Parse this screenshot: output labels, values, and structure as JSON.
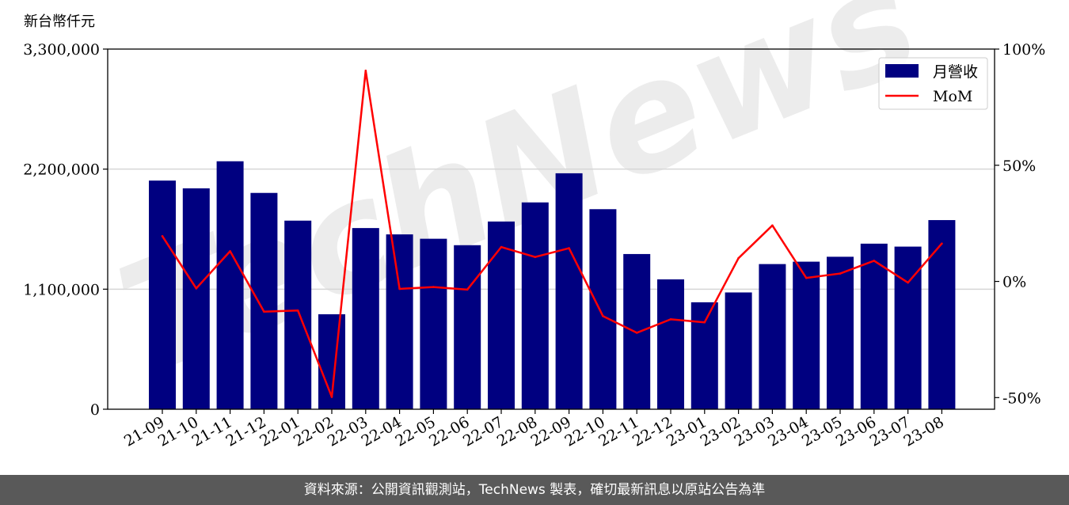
{
  "chart_data": {
    "type": "bar+line",
    "unit_label": "新台幣仟元",
    "categories": [
      "21-09",
      "21-10",
      "21-11",
      "21-12",
      "22-01",
      "22-02",
      "22-03",
      "22-04",
      "22-05",
      "22-06",
      "22-07",
      "22-08",
      "22-09",
      "22-10",
      "22-11",
      "22-12",
      "23-01",
      "23-02",
      "23-03",
      "23-04",
      "23-05",
      "23-06",
      "23-07",
      "23-08"
    ],
    "series": [
      {
        "name": "月營收",
        "type": "bar",
        "axis": "left",
        "color": "#000080",
        "values": [
          2095000,
          2024000,
          2272000,
          1982000,
          1728000,
          870000,
          1660000,
          1602000,
          1562000,
          1503000,
          1720000,
          1895000,
          2162000,
          1833000,
          1422000,
          1190000,
          980000,
          1070000,
          1330000,
          1352000,
          1397000,
          1517000,
          1490000,
          1733000
        ]
      },
      {
        "name": "MoM",
        "type": "line",
        "axis": "right",
        "color": "#ff0000",
        "values": [
          19.5,
          -3.0,
          13.0,
          -13.0,
          -12.5,
          -49.7,
          90.7,
          -3.2,
          -2.4,
          -3.5,
          14.8,
          10.5,
          14.3,
          -14.9,
          -22.1,
          -16.3,
          -17.6,
          10.0,
          24.1,
          1.5,
          3.4,
          8.9,
          -0.5,
          16.3
        ]
      }
    ],
    "yleft": {
      "ylim": [
        0,
        3300000
      ],
      "ticks": [
        0,
        1100000,
        2200000,
        3300000
      ],
      "tick_labels": [
        "0",
        "1,100,000",
        "2,200,000",
        "3,300,000"
      ]
    },
    "yright": {
      "ylim": [
        -55,
        100
      ],
      "ticks": [
        -50,
        0,
        50,
        100
      ],
      "tick_labels": [
        "-50%",
        "0%",
        "50%",
        "100%"
      ]
    },
    "legend": {
      "position": "top-right",
      "entries": [
        "月營收",
        "MoM"
      ]
    },
    "grid": "horizontal",
    "watermark": "TechNews"
  },
  "footer": {
    "text": "資料來源：公開資訊觀測站，TechNews 製表，確切最新訊息以原站公告為準"
  }
}
